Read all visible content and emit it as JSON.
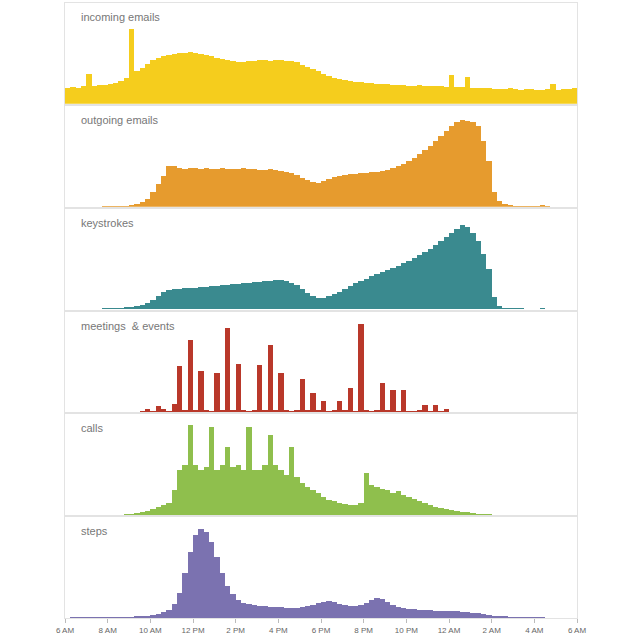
{
  "chart_data": {
    "type": "bar",
    "tick_labels": "x",
    "xlim": [
      6,
      30
    ],
    "ylim": [
      0,
      100
    ],
    "xticks": [
      {
        "value": 6,
        "label": "6 AM"
      },
      {
        "value": 8,
        "label": "8 AM"
      },
      {
        "value": 10,
        "label": "10 AM"
      },
      {
        "value": 12,
        "label": "12 PM"
      },
      {
        "value": 14,
        "label": "2 PM"
      },
      {
        "value": 16,
        "label": "4 PM"
      },
      {
        "value": 18,
        "label": "6 PM"
      },
      {
        "value": 20,
        "label": "8 PM"
      },
      {
        "value": 22,
        "label": "10 PM"
      },
      {
        "value": 24,
        "label": "12 AM"
      },
      {
        "value": 26,
        "label": "2 AM"
      },
      {
        "value": 28,
        "label": "4 AM"
      },
      {
        "value": 30,
        "label": "6 AM"
      }
    ],
    "x": [
      6,
      6.25,
      6.5,
      6.75,
      7,
      7.25,
      7.5,
      7.75,
      8,
      8.25,
      8.5,
      8.75,
      9,
      9.25,
      9.5,
      9.75,
      10,
      10.25,
      10.5,
      10.75,
      11,
      11.25,
      11.5,
      11.75,
      12,
      12.25,
      12.5,
      12.75,
      13,
      13.25,
      13.5,
      13.75,
      14,
      14.25,
      14.5,
      14.75,
      15,
      15.25,
      15.5,
      15.75,
      16,
      16.25,
      16.5,
      16.75,
      17,
      17.25,
      17.5,
      17.75,
      18,
      18.25,
      18.5,
      18.75,
      19,
      19.25,
      19.5,
      19.75,
      20,
      20.25,
      20.5,
      20.75,
      21,
      21.25,
      21.5,
      21.75,
      22,
      22.25,
      22.5,
      22.75,
      23,
      23.25,
      23.5,
      23.75,
      24,
      24.25,
      24.5,
      24.75,
      25,
      25.25,
      25.5,
      25.75,
      26,
      26.25,
      26.5,
      26.75,
      27,
      27.25,
      27.5,
      27.75,
      28,
      28.25,
      28.5,
      28.75,
      29,
      29.25,
      29.5,
      29.75
    ],
    "series": [
      {
        "name": "incoming emails",
        "color": "#f5cd1d",
        "values": [
          16,
          17,
          16,
          18,
          30,
          18,
          19,
          19,
          20,
          21,
          23,
          26,
          74,
          33,
          36,
          40,
          43,
          45,
          47,
          48,
          49,
          50,
          50,
          51,
          50,
          49,
          48,
          47,
          45,
          44,
          43,
          42,
          41,
          41,
          42,
          42,
          43,
          43,
          42,
          43,
          43,
          42,
          42,
          41,
          39,
          37,
          35,
          33,
          30,
          28,
          26,
          25,
          24,
          23,
          22,
          22,
          21,
          21,
          20,
          20,
          20,
          19,
          19,
          19,
          18,
          18,
          19,
          18,
          18,
          18,
          18,
          17,
          29,
          17,
          17,
          27,
          16,
          16,
          16,
          16,
          15,
          15,
          15,
          16,
          15,
          14,
          15,
          15,
          14,
          14,
          15,
          20,
          14,
          15,
          15,
          16
        ]
      },
      {
        "name": "outgoing emails",
        "color": "#e69b2e",
        "values": [
          0,
          0,
          0,
          0,
          0,
          0,
          0,
          0.5,
          0.5,
          0.5,
          1,
          1,
          2,
          3,
          5,
          8,
          15,
          22,
          30,
          40,
          40,
          38,
          37,
          38,
          38,
          37,
          38,
          37,
          37,
          38,
          37,
          37,
          37,
          38,
          37,
          37,
          36,
          36,
          37,
          36,
          35,
          34,
          33,
          31,
          28,
          26,
          24,
          23,
          25,
          27,
          29,
          30,
          31,
          32,
          32,
          33,
          33,
          34,
          34,
          35,
          36,
          38,
          40,
          42,
          45,
          48,
          52,
          56,
          60,
          65,
          70,
          75,
          80,
          84,
          86,
          85,
          84,
          80,
          65,
          45,
          15,
          6,
          3,
          2,
          1,
          1,
          1,
          0.5,
          1,
          2,
          0.5,
          0,
          0,
          0,
          0,
          0
        ]
      },
      {
        "name": "keystrokes",
        "color": "#3a8a8f",
        "values": [
          0.5,
          0.5,
          0.5,
          0.5,
          0.5,
          0.5,
          0.5,
          1,
          1,
          1,
          1,
          2,
          2,
          3,
          4,
          6,
          9,
          13,
          17,
          19,
          20,
          20,
          21,
          21,
          21,
          22,
          22,
          23,
          23,
          24,
          24,
          25,
          25,
          26,
          26,
          27,
          27,
          28,
          28,
          29,
          29,
          28,
          26,
          24,
          20,
          16,
          13,
          11,
          11,
          13,
          15,
          17,
          20,
          23,
          26,
          28,
          30,
          33,
          35,
          37,
          39,
          41,
          43,
          46,
          48,
          51,
          54,
          57,
          60,
          64,
          68,
          72,
          76,
          80,
          84,
          82,
          76,
          68,
          55,
          40,
          12,
          3,
          1,
          1,
          1,
          1,
          0.5,
          0.5,
          0.5,
          1,
          0.5,
          0,
          0,
          0,
          0,
          0
        ]
      },
      {
        "name": "meetings  & events",
        "color": "#b9382a",
        "values": [
          0,
          0,
          0,
          0,
          0,
          0.5,
          0,
          0,
          0.5,
          0,
          0.5,
          0,
          0.5,
          0,
          1,
          3,
          1,
          6,
          3,
          1,
          8,
          46,
          2,
          72,
          2,
          41,
          2,
          1,
          39,
          2,
          84,
          2,
          48,
          2,
          1,
          2,
          47,
          2,
          67,
          2,
          39,
          2,
          1,
          2,
          33,
          2,
          19,
          2,
          11,
          1,
          2,
          11,
          2,
          24,
          1,
          88,
          2,
          1,
          2,
          29,
          2,
          22,
          1,
          22,
          1,
          1,
          2,
          7,
          1,
          7,
          1,
          3,
          0.5,
          0,
          0.5,
          0,
          0,
          0,
          0,
          0,
          0,
          0,
          0,
          0,
          0,
          0,
          0.5,
          0,
          0,
          0,
          0,
          0,
          0,
          0,
          0,
          0
        ]
      },
      {
        "name": "calls",
        "color": "#8fbf4d",
        "values": [
          0,
          0,
          0,
          0,
          0,
          0,
          0,
          0,
          0,
          0.5,
          0.5,
          1,
          1,
          2,
          3,
          4,
          6,
          8,
          10,
          12,
          25,
          45,
          50,
          89,
          50,
          45,
          48,
          87,
          45,
          50,
          68,
          48,
          50,
          45,
          87,
          45,
          45,
          50,
          80,
          50,
          45,
          40,
          68,
          38,
          32,
          28,
          25,
          22,
          18,
          15,
          14,
          12,
          11,
          10,
          10,
          12,
          42,
          30,
          28,
          26,
          25,
          22,
          24,
          20,
          18,
          16,
          14,
          12,
          10,
          8,
          7,
          6,
          5,
          4,
          3,
          3,
          2,
          1,
          1,
          1,
          0.5,
          0.5,
          0,
          0.5,
          0,
          0.5,
          0,
          0,
          0,
          0,
          0,
          0,
          0,
          0,
          0,
          0
        ]
      },
      {
        "name": "steps",
        "color": "#7b72b0",
        "values": [
          0,
          0.5,
          0.5,
          0.5,
          0.5,
          0.5,
          0.5,
          0.5,
          0.5,
          1,
          1,
          1,
          1,
          1.5,
          2,
          2,
          3,
          4,
          6,
          8,
          14,
          25,
          45,
          65,
          82,
          88,
          85,
          75,
          60,
          45,
          32,
          24,
          18,
          15,
          14,
          13,
          12,
          12,
          11,
          11,
          11,
          10,
          10,
          10,
          11,
          12,
          13,
          15,
          16,
          17,
          16,
          14,
          13,
          12,
          12,
          13,
          15,
          18,
          20,
          19,
          16,
          13,
          11,
          10,
          9,
          9,
          8,
          8,
          8,
          7,
          7,
          7,
          7,
          7,
          6,
          6,
          5,
          5,
          4,
          3,
          2,
          2,
          1.5,
          1,
          1,
          1,
          0.5,
          0.5,
          0.5,
          0.5,
          0,
          0,
          0,
          0,
          0,
          0
        ]
      }
    ]
  }
}
